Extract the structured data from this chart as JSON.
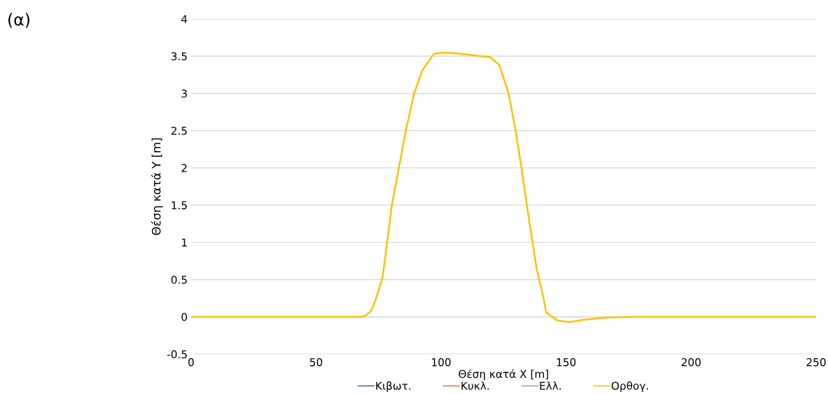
{
  "chart_data": {
    "type": "line",
    "title": "(α)",
    "xlabel": "Θέση κατά X [m]",
    "ylabel": "Θέση κατά Y [m]",
    "x": [
      0,
      50,
      68,
      70,
      72,
      74,
      76.6,
      80.3,
      83.1,
      85.9,
      89.2,
      92.5,
      97.1,
      100.9,
      108.3,
      115.8,
      119.5,
      123.3,
      127,
      129.8,
      132.6,
      135.4,
      138.2,
      141,
      142,
      146.6,
      151.3,
      156.9,
      166.2,
      175,
      200,
      250
    ],
    "series": [
      {
        "name": "Κιβωτ.",
        "color": "#4472c4",
        "values": [
          null,
          null,
          null,
          null,
          null,
          null,
          null,
          null,
          null,
          null,
          null,
          null,
          null,
          null,
          null,
          null,
          null,
          null,
          null,
          null,
          null,
          null,
          null,
          null,
          null,
          null,
          null,
          null,
          null,
          null,
          null,
          null
        ]
      },
      {
        "name": "Κυκλ.",
        "color": "#ed7d31",
        "values": [
          null,
          null,
          null,
          null,
          null,
          null,
          null,
          null,
          null,
          null,
          null,
          null,
          null,
          null,
          null,
          null,
          null,
          null,
          null,
          null,
          null,
          null,
          null,
          null,
          null,
          null,
          null,
          null,
          null,
          null,
          null,
          null
        ]
      },
      {
        "name": "Ελλ.",
        "color": "#a5a5a5",
        "values": [
          null,
          null,
          null,
          null,
          null,
          null,
          null,
          null,
          null,
          null,
          null,
          null,
          null,
          null,
          null,
          null,
          null,
          null,
          null,
          null,
          null,
          null,
          null,
          null,
          null,
          null,
          null,
          null,
          null,
          null,
          null,
          null
        ]
      },
      {
        "name": "Ορθογ.",
        "color": "#ffc000",
        "values": [
          0,
          0,
          0,
          0.02,
          0.08,
          0.25,
          0.53,
          1.5,
          2.0,
          2.5,
          3.0,
          3.31,
          3.53,
          3.55,
          3.53,
          3.5,
          3.49,
          3.38,
          3.0,
          2.5,
          1.9,
          1.25,
          0.65,
          0.25,
          0.06,
          -0.05,
          -0.07,
          -0.04,
          -0.01,
          0,
          0,
          0
        ]
      }
    ],
    "xlim": [
      0,
      250
    ],
    "xticks": [
      0,
      50,
      100,
      150,
      200,
      250
    ],
    "ylim": [
      -0.5,
      4
    ],
    "yticks": [
      -0.5,
      0,
      0.5,
      1,
      1.5,
      2,
      2.5,
      3,
      3.5,
      4
    ],
    "grid": "y",
    "legend": "bottom",
    "marker": "none",
    "line_style": "solid"
  }
}
